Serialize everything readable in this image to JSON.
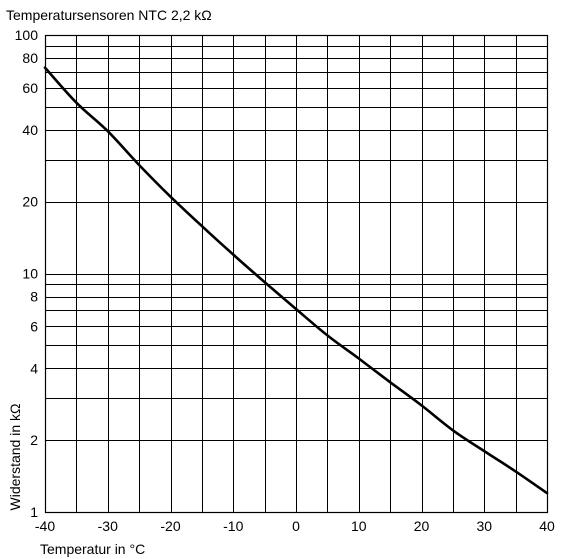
{
  "chart_data": {
    "type": "line",
    "title": "Temperatursensoren NTC 2,2 kΩ",
    "xlabel": "Temperatur in °C",
    "ylabel": "Widerstand in kΩ",
    "xlim": [
      -40,
      40
    ],
    "ylim": [
      1,
      100
    ],
    "y_scale": "log",
    "grid": true,
    "x_ticks": [
      -40,
      -30,
      -20,
      -10,
      0,
      10,
      20,
      30,
      40
    ],
    "x_tick_labels": [
      "-40",
      "-30",
      "-20",
      "-10",
      "0",
      "10",
      "20",
      "30",
      "40"
    ],
    "y_ticks": [
      1,
      2,
      4,
      6,
      8,
      10,
      20,
      40,
      60,
      80,
      100
    ],
    "y_tick_labels": [
      "1",
      "2",
      "4",
      "6",
      "8",
      "10",
      "20",
      "40",
      "60",
      "80",
      "100"
    ],
    "y_gridlines": [
      1,
      2,
      3,
      4,
      5,
      6,
      7,
      8,
      9,
      10,
      20,
      30,
      40,
      50,
      60,
      70,
      80,
      90,
      100
    ],
    "x_gridlines": [
      -40,
      -35,
      -30,
      -25,
      -20,
      -15,
      -10,
      -5,
      0,
      5,
      10,
      15,
      20,
      25,
      30,
      35,
      40
    ],
    "series": [
      {
        "color": "#000000",
        "x": [
          -40,
          -35,
          -30,
          -25,
          -20,
          -15,
          -10,
          -5,
          0,
          5,
          10,
          15,
          20,
          25,
          30,
          35,
          40
        ],
        "y": [
          73,
          52,
          39.5,
          28.5,
          21,
          15.8,
          12,
          9.2,
          7.1,
          5.5,
          4.4,
          3.5,
          2.8,
          2.2,
          1.8,
          1.48,
          1.2
        ]
      }
    ]
  }
}
